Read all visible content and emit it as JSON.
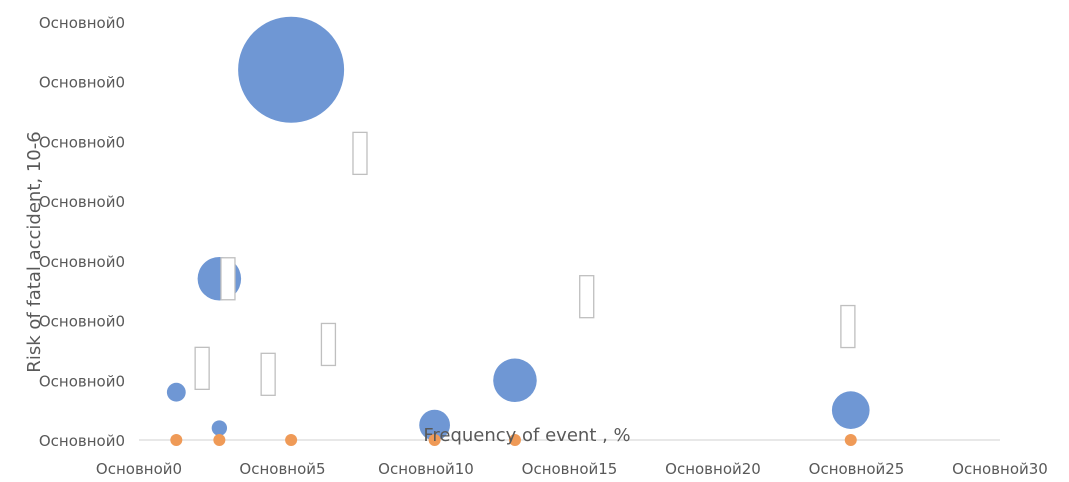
{
  "chart_data": {
    "type": "scatter",
    "xlabel": "Frequency of event , %",
    "ylabel": "Risk of fatal accident, 10-6",
    "xlim": [
      0,
      30
    ],
    "ylim": [
      0,
      7
    ],
    "x_tick_labels": [
      "Основной0",
      "Основной5",
      "Основной10",
      "Основной15",
      "Основной20",
      "Основной25",
      "Основной30"
    ],
    "y_tick_labels": [
      "Основной0",
      "Основной0",
      "Основной0",
      "Основной0",
      "Основной0",
      "Основной0",
      "Основной0",
      "Основной0"
    ],
    "grid": false,
    "legend": "none",
    "series": [
      {
        "color": "#6f97d4",
        "points": [
          {
            "x": 1.3,
            "y": 0.8,
            "size": 0.3
          },
          {
            "x": 2.8,
            "y": 2.7,
            "size": 1.6
          },
          {
            "x": 2.8,
            "y": 0.2,
            "size": 0.2
          },
          {
            "x": 5.3,
            "y": 6.2,
            "size": 9.5
          },
          {
            "x": 10.3,
            "y": 0.25,
            "size": 0.8
          },
          {
            "x": 13.1,
            "y": 1.0,
            "size": 1.6
          },
          {
            "x": 24.8,
            "y": 0.5,
            "size": 1.2
          }
        ]
      },
      {
        "color": "#ef9a57",
        "points": [
          {
            "x": 1.3,
            "y": 0,
            "size": 0.1
          },
          {
            "x": 2.8,
            "y": 0,
            "size": 0.1
          },
          {
            "x": 5.3,
            "y": 0,
            "size": 0.1
          },
          {
            "x": 10.3,
            "y": 0,
            "size": 0.1
          },
          {
            "x": 13.1,
            "y": 0,
            "size": 0.1
          },
          {
            "x": 24.8,
            "y": 0,
            "size": 0.1
          }
        ]
      }
    ],
    "placeholder_label_marks": [
      {
        "x": 4.5,
        "y": 1.1
      },
      {
        "x": 3.1,
        "y": 2.7
      },
      {
        "x": 7.7,
        "y": 4.8
      },
      {
        "x": 6.6,
        "y": 1.6
      },
      {
        "x": 2.2,
        "y": 1.2
      },
      {
        "x": 15.6,
        "y": 2.4
      },
      {
        "x": 24.7,
        "y": 1.9
      }
    ]
  }
}
